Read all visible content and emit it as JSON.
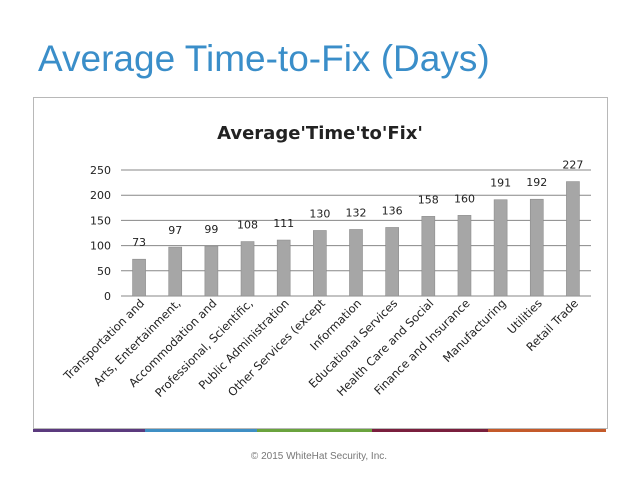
{
  "slide": {
    "title": "Average Time-to-Fix (Days)",
    "footer": "© 2015 WhiteHat Security, Inc."
  },
  "colors": {
    "title": "#3a8ec9",
    "bar": "#a6a6a6",
    "gridline": "#878787",
    "text": "#222222",
    "stripes": [
      "#5b3a7e",
      "#3f8fc4",
      "#6aa33e",
      "#7a1f3d",
      "#c45a2a"
    ]
  },
  "chart_data": {
    "type": "bar",
    "title": "Average'Time'to'Fix'",
    "categories": [
      "Transportation and",
      "Arts, Entertainment,",
      "Accommodation and",
      "Professional, Scientific,",
      "Public Administration",
      "Other Services (except",
      "Information",
      "Educational Services",
      "Health Care and Social",
      "Finance and Insurance",
      "Manufacturing",
      "Utilities",
      "Retail Trade"
    ],
    "values": [
      73,
      97,
      99,
      108,
      111,
      130,
      132,
      136,
      158,
      160,
      191,
      192,
      227
    ],
    "ylim": [
      0,
      250
    ],
    "yticks": [
      0,
      50,
      100,
      150,
      200,
      250
    ],
    "xlabel": "",
    "ylabel": "",
    "grid": true,
    "legend": false
  }
}
